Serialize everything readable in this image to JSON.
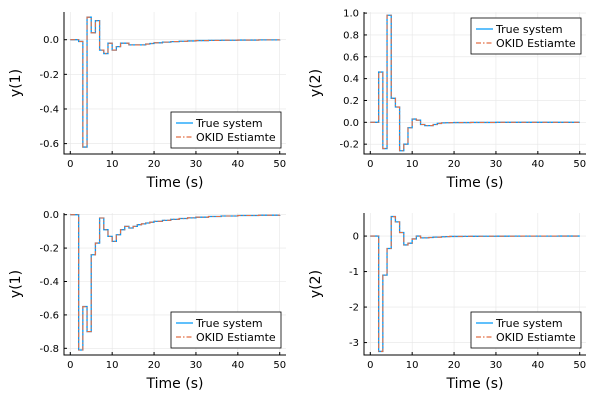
{
  "figure": {
    "colors": {
      "true_system": "#009afa",
      "okid": "#e26f46"
    }
  },
  "chart_data": [
    {
      "type": "line",
      "panel": "top-left",
      "xlabel": "Time (s)",
      "ylabel": "y(1)",
      "xlim": [
        -1.5,
        51.5
      ],
      "ylim": [
        -0.66,
        0.16
      ],
      "xticks": [
        0,
        10,
        20,
        30,
        40,
        50
      ],
      "xtick_labels": [
        "0",
        "10",
        "20",
        "30",
        "40",
        "50"
      ],
      "yticks": [
        -0.6,
        -0.4,
        -0.2,
        0.0
      ],
      "ytick_labels": [
        "-0.6",
        "-0.4",
        "-0.2",
        "0.0"
      ],
      "grid": true,
      "legend_position": "bottom-right",
      "series": [
        {
          "name": "True system",
          "style": "solid",
          "x": [
            0,
            1,
            2,
            3,
            4,
            5,
            6,
            7,
            8,
            9,
            10,
            11,
            12,
            13,
            14,
            15,
            16,
            17,
            18,
            19,
            20,
            22,
            24,
            26,
            28,
            30,
            33,
            36,
            40,
            45,
            50
          ],
          "y": [
            0.0,
            0.0,
            -0.01,
            -0.62,
            0.13,
            0.04,
            0.11,
            -0.06,
            -0.08,
            -0.02,
            -0.06,
            -0.04,
            -0.02,
            -0.02,
            -0.03,
            -0.03,
            -0.03,
            -0.03,
            -0.025,
            -0.022,
            -0.018,
            -0.014,
            -0.011,
            -0.009,
            -0.007,
            -0.005,
            -0.004,
            -0.003,
            -0.002,
            -0.001,
            0.0
          ]
        },
        {
          "name": "OKID Estiamte",
          "style": "dashed",
          "x": [
            0,
            1,
            2,
            3,
            4,
            5,
            6,
            7,
            8,
            9,
            10,
            11,
            12,
            13,
            14,
            15,
            16,
            17,
            18,
            19,
            20,
            22,
            24,
            26,
            28,
            30,
            33,
            36,
            40,
            45,
            50
          ],
          "y": [
            0.0,
            0.0,
            -0.01,
            -0.62,
            0.13,
            0.04,
            0.11,
            -0.06,
            -0.08,
            -0.02,
            -0.06,
            -0.04,
            -0.02,
            -0.02,
            -0.03,
            -0.03,
            -0.03,
            -0.03,
            -0.025,
            -0.022,
            -0.018,
            -0.014,
            -0.011,
            -0.009,
            -0.007,
            -0.005,
            -0.004,
            -0.003,
            -0.002,
            -0.001,
            0.0
          ]
        }
      ]
    },
    {
      "type": "line",
      "panel": "top-right",
      "xlabel": "Time (s)",
      "ylabel": "y(2)",
      "xlim": [
        -1.5,
        51.5
      ],
      "ylim": [
        -0.29,
        1.01
      ],
      "xticks": [
        0,
        10,
        20,
        30,
        40,
        50
      ],
      "xtick_labels": [
        "0",
        "10",
        "20",
        "30",
        "40",
        "50"
      ],
      "yticks": [
        -0.2,
        0.0,
        0.2,
        0.4,
        0.6,
        0.8,
        1.0
      ],
      "ytick_labels": [
        "-0.2",
        "0.0",
        "0.2",
        "0.4",
        "0.6",
        "0.8",
        "1.0"
      ],
      "grid": true,
      "legend_position": "top-right",
      "series": [
        {
          "name": "True system",
          "style": "solid",
          "x": [
            0,
            1,
            2,
            3,
            4,
            5,
            6,
            7,
            8,
            9,
            10,
            11,
            12,
            13,
            14,
            15,
            16,
            17,
            18,
            19,
            20,
            22,
            24,
            26,
            28,
            30,
            33,
            36,
            40,
            45,
            50
          ],
          "y": [
            0.0,
            0.0,
            0.46,
            -0.24,
            0.98,
            0.22,
            0.14,
            -0.26,
            -0.2,
            -0.05,
            0.03,
            0.02,
            -0.02,
            -0.03,
            -0.03,
            -0.02,
            -0.01,
            -0.005,
            -0.004,
            -0.003,
            -0.002,
            -0.002,
            -0.001,
            -0.001,
            -0.001,
            0.0,
            0.0,
            0.0,
            0.0,
            0.0,
            0.0
          ]
        },
        {
          "name": "OKID Estiamte",
          "style": "dashed",
          "x": [
            0,
            1,
            2,
            3,
            4,
            5,
            6,
            7,
            8,
            9,
            10,
            11,
            12,
            13,
            14,
            15,
            16,
            17,
            18,
            19,
            20,
            22,
            24,
            26,
            28,
            30,
            33,
            36,
            40,
            45,
            50
          ],
          "y": [
            0.0,
            0.0,
            0.46,
            -0.24,
            0.98,
            0.22,
            0.14,
            -0.26,
            -0.2,
            -0.05,
            0.03,
            0.02,
            -0.02,
            -0.03,
            -0.03,
            -0.02,
            -0.01,
            -0.005,
            -0.004,
            -0.003,
            -0.002,
            -0.002,
            -0.001,
            -0.001,
            -0.001,
            0.0,
            0.0,
            0.0,
            0.0,
            0.0,
            0.0
          ]
        }
      ]
    },
    {
      "type": "line",
      "panel": "bottom-left",
      "xlabel": "Time (s)",
      "ylabel": "y(1)",
      "xlim": [
        -1.5,
        51.5
      ],
      "ylim": [
        -0.84,
        0.01
      ],
      "xticks": [
        0,
        10,
        20,
        30,
        40,
        50
      ],
      "xtick_labels": [
        "0",
        "10",
        "20",
        "30",
        "40",
        "50"
      ],
      "yticks": [
        -0.8,
        -0.6,
        -0.4,
        -0.2,
        0.0
      ],
      "ytick_labels": [
        "-0.8",
        "-0.6",
        "-0.4",
        "-0.2",
        "0.0"
      ],
      "grid": true,
      "legend_position": "bottom-right",
      "series": [
        {
          "name": "True system",
          "style": "solid",
          "x": [
            0,
            1,
            2,
            3,
            4,
            5,
            6,
            7,
            8,
            9,
            10,
            11,
            12,
            13,
            14,
            15,
            16,
            17,
            18,
            19,
            20,
            22,
            24,
            26,
            28,
            30,
            33,
            36,
            40,
            45,
            50
          ],
          "y": [
            0.0,
            0.0,
            -0.81,
            -0.55,
            -0.7,
            -0.24,
            -0.17,
            -0.02,
            -0.09,
            -0.13,
            -0.16,
            -0.12,
            -0.09,
            -0.07,
            -0.08,
            -0.07,
            -0.06,
            -0.055,
            -0.05,
            -0.045,
            -0.04,
            -0.034,
            -0.028,
            -0.023,
            -0.019,
            -0.015,
            -0.011,
            -0.008,
            -0.005,
            -0.003,
            -0.002
          ]
        },
        {
          "name": "OKID Estiamte",
          "style": "dashed",
          "x": [
            0,
            1,
            2,
            3,
            4,
            5,
            6,
            7,
            8,
            9,
            10,
            11,
            12,
            13,
            14,
            15,
            16,
            17,
            18,
            19,
            20,
            22,
            24,
            26,
            28,
            30,
            33,
            36,
            40,
            45,
            50
          ],
          "y": [
            0.0,
            0.0,
            -0.81,
            -0.55,
            -0.7,
            -0.24,
            -0.17,
            -0.02,
            -0.09,
            -0.13,
            -0.16,
            -0.12,
            -0.09,
            -0.07,
            -0.08,
            -0.07,
            -0.06,
            -0.055,
            -0.05,
            -0.045,
            -0.04,
            -0.034,
            -0.028,
            -0.023,
            -0.019,
            -0.015,
            -0.011,
            -0.008,
            -0.005,
            -0.003,
            -0.002
          ]
        }
      ]
    },
    {
      "type": "line",
      "panel": "bottom-right",
      "xlabel": "Time (s)",
      "ylabel": "y(2)",
      "xlim": [
        -1.5,
        51.5
      ],
      "ylim": [
        -3.35,
        0.65
      ],
      "xticks": [
        0,
        10,
        20,
        30,
        40,
        50
      ],
      "xtick_labels": [
        "0",
        "10",
        "20",
        "30",
        "40",
        "50"
      ],
      "yticks": [
        -3,
        -2,
        -1,
        0
      ],
      "ytick_labels": [
        "-3",
        "-2",
        "-1",
        "0"
      ],
      "grid": true,
      "legend_position": "bottom-right",
      "series": [
        {
          "name": "True system",
          "style": "solid",
          "x": [
            0,
            1,
            2,
            3,
            4,
            5,
            6,
            7,
            8,
            9,
            10,
            11,
            12,
            13,
            14,
            15,
            16,
            17,
            18,
            19,
            20,
            22,
            24,
            26,
            28,
            30,
            33,
            36,
            40,
            45,
            50
          ],
          "y": [
            0.0,
            0.0,
            -3.25,
            -1.1,
            -0.35,
            0.55,
            0.4,
            0.1,
            -0.25,
            -0.2,
            -0.08,
            0.0,
            -0.05,
            -0.05,
            -0.04,
            -0.03,
            -0.03,
            -0.02,
            -0.015,
            -0.01,
            -0.01,
            -0.008,
            -0.006,
            -0.005,
            -0.004,
            -0.003,
            -0.002,
            -0.001,
            -0.001,
            0.0,
            0.0
          ]
        },
        {
          "name": "OKID Estiamte",
          "style": "dashed",
          "x": [
            0,
            1,
            2,
            3,
            4,
            5,
            6,
            7,
            8,
            9,
            10,
            11,
            12,
            13,
            14,
            15,
            16,
            17,
            18,
            19,
            20,
            22,
            24,
            26,
            28,
            30,
            33,
            36,
            40,
            45,
            50
          ],
          "y": [
            0.0,
            0.0,
            -3.25,
            -1.1,
            -0.35,
            0.55,
            0.4,
            0.1,
            -0.25,
            -0.2,
            -0.08,
            0.0,
            -0.05,
            -0.05,
            -0.04,
            -0.03,
            -0.03,
            -0.02,
            -0.015,
            -0.01,
            -0.01,
            -0.008,
            -0.006,
            -0.005,
            -0.004,
            -0.003,
            -0.002,
            -0.001,
            -0.001,
            0.0,
            0.0
          ]
        }
      ]
    }
  ]
}
